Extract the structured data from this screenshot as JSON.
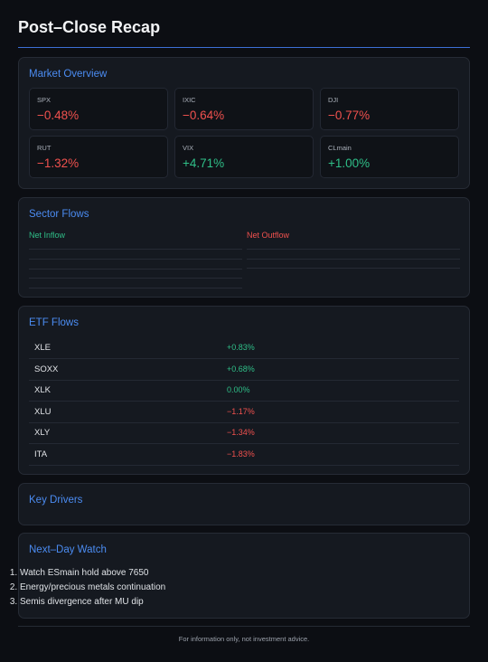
{
  "header": {
    "title": "Post–Close Recap"
  },
  "market_overview": {
    "title": "Market Overview",
    "tiles": [
      {
        "label": "SPX",
        "change": "−0.48%"
      },
      {
        "label": "IXIC",
        "change": "−0.64%"
      },
      {
        "label": "DJI",
        "change": "−0.77%"
      },
      {
        "label": "RUT",
        "change": "−1.32%"
      },
      {
        "label": "VIX",
        "change": "+4.71%"
      },
      {
        "label": "CLmain",
        "change": "+1.00%"
      }
    ]
  },
  "sector_flows": {
    "title": "Sector Flows",
    "inflow_label": "Net Inflow",
    "outflow_label": "Net Outflow"
  },
  "etf_flows": {
    "title": "ETF Flows",
    "rows": [
      [
        "XLE",
        "+0.83%"
      ],
      [
        "SOXX",
        "+0.68%"
      ],
      [
        "XLK",
        "0.00%"
      ],
      [
        "XLU",
        "−1.17%"
      ],
      [
        "XLY",
        "−1.34%"
      ],
      [
        "ITA",
        "−1.83%"
      ]
    ]
  },
  "key_drivers": {
    "title": "Key Drivers"
  },
  "next_day_watch": {
    "title": "Next–Day Watch",
    "items": [
      "Watch ESmain hold above 7650",
      "Energy/precious metals continuation",
      "Semis divergence after MU dip"
    ]
  },
  "footer": "For information only, not investment advice."
}
